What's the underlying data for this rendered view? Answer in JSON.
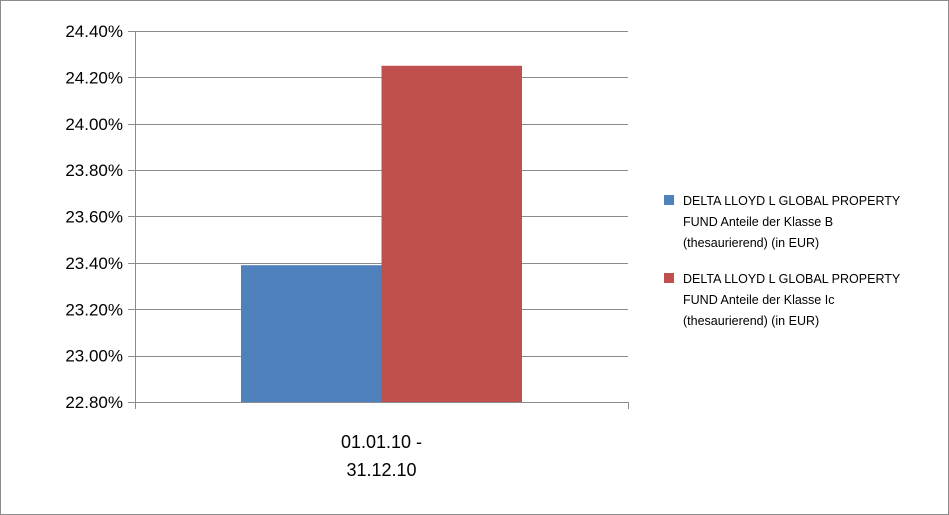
{
  "chart_data": {
    "type": "bar",
    "title": "",
    "xlabel": "",
    "ylabel": "",
    "categories": [
      [
        "01.01.10 -",
        "31.12.10"
      ]
    ],
    "series": [
      {
        "name": [
          "DELTA LLOYD  L GLOBAL PROPERTY",
          "FUND Anteile der Klasse B",
          "(thesaurierend) (in EUR)"
        ],
        "values": [
          23.39
        ],
        "color": "#4f81bd"
      },
      {
        "name": [
          "DELTA LLOYD  L GLOBAL PROPERTY",
          "FUND Anteile der Klasse Ic",
          "(thesaurierend) (in EUR)"
        ],
        "values": [
          24.25
        ],
        "color": "#c0504d"
      }
    ],
    "ylim": [
      22.8,
      24.4
    ],
    "yticks": [
      22.8,
      23.0,
      23.2,
      23.4,
      23.6,
      23.8,
      24.0,
      24.2,
      24.4
    ],
    "tick_format": "percent-2dp",
    "grid": true,
    "legend_position": "right"
  }
}
